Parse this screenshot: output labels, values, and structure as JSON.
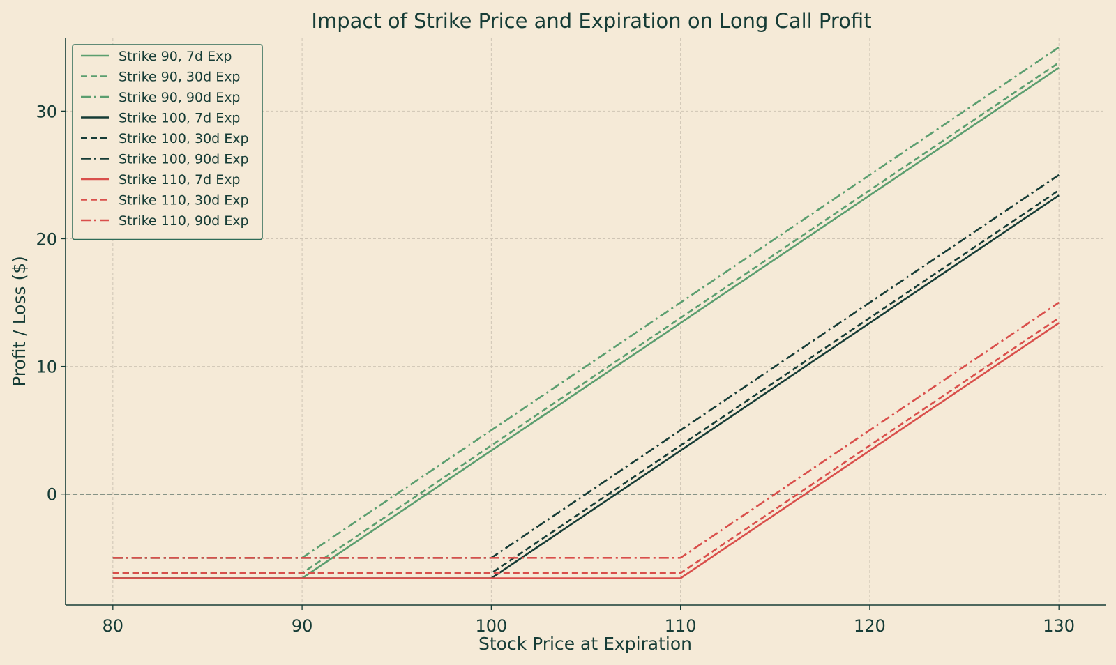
{
  "chart_data": {
    "type": "line",
    "title": "Impact of Strike Price and Expiration on Long Call Profit",
    "xlabel": "Stock Price at Expiration",
    "ylabel": "Profit / Loss ($)",
    "xlim": [
      77.5,
      132.5
    ],
    "ylim": [
      -8.7,
      35.7
    ],
    "xticks": [
      80,
      90,
      100,
      110,
      120,
      130
    ],
    "yticks": [
      0,
      10,
      20,
      30
    ],
    "grid": true,
    "legend_position": "top-left",
    "zero_line": {
      "y": 0,
      "color": "#163c36",
      "style": "dashed"
    },
    "series": [
      {
        "name": "Strike 90, 7d Exp",
        "color": "#5b9e6f",
        "style": "solid",
        "x": [
          80,
          90,
          130
        ],
        "y": [
          -6.6,
          -6.6,
          33.4
        ]
      },
      {
        "name": "Strike 90, 30d Exp",
        "color": "#5b9e6f",
        "style": "dashed",
        "x": [
          80,
          90,
          130
        ],
        "y": [
          -6.2,
          -6.2,
          33.8
        ]
      },
      {
        "name": "Strike 90, 90d Exp",
        "color": "#5b9e6f",
        "style": "dashdot",
        "x": [
          80,
          90,
          130
        ],
        "y": [
          -5.0,
          -5.0,
          35.0
        ]
      },
      {
        "name": "Strike 100, 7d Exp",
        "color": "#163c36",
        "style": "solid",
        "x": [
          80,
          100,
          130
        ],
        "y": [
          -6.6,
          -6.6,
          23.4
        ]
      },
      {
        "name": "Strike 100, 30d Exp",
        "color": "#163c36",
        "style": "dashed",
        "x": [
          80,
          100,
          130
        ],
        "y": [
          -6.2,
          -6.2,
          23.8
        ]
      },
      {
        "name": "Strike 100, 90d Exp",
        "color": "#163c36",
        "style": "dashdot",
        "x": [
          80,
          100,
          130
        ],
        "y": [
          -5.0,
          -5.0,
          25.0
        ]
      },
      {
        "name": "Strike 110, 7d Exp",
        "color": "#d94f4b",
        "style": "solid",
        "x": [
          80,
          110,
          130
        ],
        "y": [
          -6.6,
          -6.6,
          13.4
        ]
      },
      {
        "name": "Strike 110, 30d Exp",
        "color": "#d94f4b",
        "style": "dashed",
        "x": [
          80,
          110,
          130
        ],
        "y": [
          -6.2,
          -6.2,
          13.8
        ]
      },
      {
        "name": "Strike 110, 90d Exp",
        "color": "#d94f4b",
        "style": "dashdot",
        "x": [
          80,
          110,
          130
        ],
        "y": [
          -5.0,
          -5.0,
          15.0
        ]
      }
    ]
  },
  "colors": {
    "background": "#f5ead7",
    "text": "#163c36",
    "grid": "#cfc5b5",
    "legend_border": "#2e6b57"
  }
}
